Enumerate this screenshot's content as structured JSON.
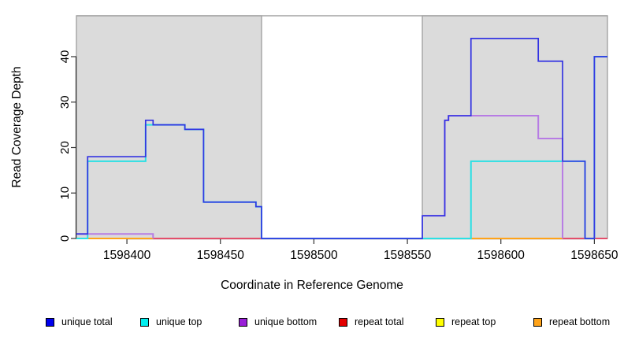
{
  "chart_data": {
    "type": "line",
    "subtype": "step-coverage",
    "xlabel": "Coordinate in Reference Genome",
    "ylabel": "Read Coverage Depth",
    "x_range": [
      1598373,
      1598657
    ],
    "y_range": [
      0,
      49
    ],
    "x_ticks": [
      1598400,
      1598450,
      1598500,
      1598550,
      1598600,
      1598650
    ],
    "y_ticks": [
      0,
      10,
      20,
      30,
      40
    ],
    "grid": false,
    "legend_position": "bottom",
    "masked_regions": [
      {
        "from": 1598373,
        "to": 1598472
      },
      {
        "from": 1598558,
        "to": 1598657
      }
    ],
    "series": [
      {
        "name": "repeat total",
        "color": "#E34E6B",
        "legend_color": "#E30000",
        "segments": [
          [
            [
              1598373,
              0
            ],
            [
              1598657,
              0
            ]
          ]
        ]
      },
      {
        "name": "repeat top",
        "color": "#F2E400",
        "legend_color": "#FFFF00",
        "overlapped_by_unique_top": true,
        "segments": [
          [
            [
              1598373,
              0
            ],
            [
              1598379,
              0
            ]
          ],
          [
            [
              1598558,
              0
            ],
            [
              1598584,
              0
            ]
          ]
        ]
      },
      {
        "name": "repeat bottom",
        "color": "#FFA319",
        "legend_color": "#FFA319",
        "segments": [
          [
            [
              1598379,
              0
            ],
            [
              1598414,
              0
            ]
          ],
          [
            [
              1598584,
              0
            ],
            [
              1598633,
              0
            ]
          ]
        ]
      },
      {
        "name": "unique top",
        "color": "#2BE0E4",
        "legend_color": "#00EEEE",
        "segments": [
          [
            [
              1598373,
              0
            ],
            [
              1598379,
              17
            ],
            [
              1598410,
              25
            ],
            [
              1598431,
              24
            ],
            [
              1598441,
              8
            ],
            [
              1598469,
              7
            ],
            [
              1598472,
              0
            ],
            [
              1598584,
              17
            ],
            [
              1598645,
              0
            ],
            [
              1598650,
              40
            ],
            [
              1598657,
              40
            ]
          ]
        ]
      },
      {
        "name": "unique bottom",
        "color": "#B77CE4",
        "legend_color": "#9A1FD8",
        "segments": [
          [
            [
              1598373,
              1
            ],
            [
              1598414,
              0
            ]
          ],
          [
            [
              1598558,
              5
            ],
            [
              1598570,
              26
            ],
            [
              1598572,
              27
            ],
            [
              1598620,
              22
            ],
            [
              1598633,
              0
            ]
          ]
        ]
      },
      {
        "name": "unique total",
        "color": "#3434E2",
        "legend_color": "#0000EE",
        "segments": [
          [
            [
              1598373,
              1
            ],
            [
              1598379,
              18
            ],
            [
              1598410,
              26
            ],
            [
              1598414,
              25
            ],
            [
              1598431,
              24
            ],
            [
              1598441,
              8
            ],
            [
              1598469,
              7
            ],
            [
              1598472,
              0
            ],
            [
              1598558,
              5
            ],
            [
              1598570,
              26
            ],
            [
              1598572,
              27
            ],
            [
              1598584,
              44
            ],
            [
              1598620,
              39
            ],
            [
              1598633,
              17
            ],
            [
              1598645,
              0
            ],
            [
              1598650,
              40
            ],
            [
              1598657,
              40
            ]
          ]
        ]
      }
    ]
  },
  "legend": {
    "items": [
      {
        "label": "unique total",
        "color": "#0000EE"
      },
      {
        "label": "unique top",
        "color": "#00EEEE"
      },
      {
        "label": "unique bottom",
        "color": "#9A1FD8"
      },
      {
        "label": "repeat total",
        "color": "#E30000"
      },
      {
        "label": "repeat top",
        "color": "#FFFF00"
      },
      {
        "label": "repeat bottom",
        "color": "#FFA319"
      }
    ]
  },
  "colors": {
    "masked_region_fill": "#DBDBDB",
    "masked_region_border": "#A3A3A3",
    "axis": "#333333",
    "overlap_teal": "#55C9A9",
    "background": "#FFFFFF"
  }
}
